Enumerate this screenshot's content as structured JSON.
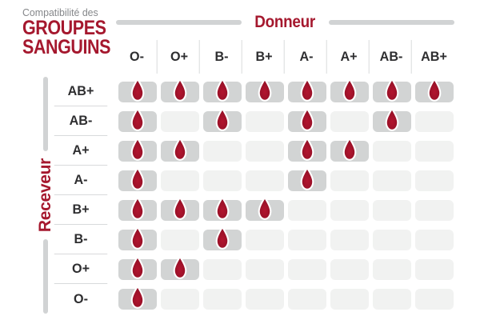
{
  "title": {
    "subtitle": "Compatibilité des",
    "line1": "GROUPES",
    "line2": "SANGUINS"
  },
  "axes": {
    "donor": "Donneur",
    "receiver": "Receveur"
  },
  "chart_data": {
    "type": "heatmap",
    "title": "Compatibilité des GROUPES SANGUINS",
    "xlabel": "Donneur",
    "ylabel": "Receveur",
    "x_categories": [
      "O-",
      "O+",
      "B-",
      "B+",
      "A-",
      "A+",
      "AB-",
      "AB+"
    ],
    "y_categories": [
      "AB+",
      "AB-",
      "A+",
      "A-",
      "B+",
      "B-",
      "O+",
      "O-"
    ],
    "values": [
      [
        1,
        1,
        1,
        1,
        1,
        1,
        1,
        1
      ],
      [
        1,
        0,
        1,
        0,
        1,
        0,
        1,
        0
      ],
      [
        1,
        1,
        0,
        0,
        1,
        1,
        0,
        0
      ],
      [
        1,
        0,
        0,
        0,
        1,
        0,
        0,
        0
      ],
      [
        1,
        1,
        1,
        1,
        0,
        0,
        0,
        0
      ],
      [
        1,
        0,
        1,
        0,
        0,
        0,
        0,
        0
      ],
      [
        1,
        1,
        0,
        0,
        0,
        0,
        0,
        0
      ],
      [
        1,
        0,
        0,
        0,
        0,
        0,
        0,
        0
      ]
    ],
    "value_meaning": "1 = compatible (blood drop icon shown), 0 = not compatible (empty cell)",
    "legend": "none",
    "grid": "off"
  },
  "icons": {
    "compatible": "blood-drop-icon"
  },
  "colors": {
    "accent_red": "#a5182e",
    "drop_red_center": "#a81530",
    "drop_red_edge": "#8c0f24",
    "cell_filled": "#d2d4d4",
    "cell_empty": "#f1f2f1",
    "line_gray": "#d1d3d4",
    "separator_gray": "#d8dadb",
    "label_dark": "#2e2e30",
    "subtitle_gray": "#85878a",
    "background": "#ffffff"
  }
}
